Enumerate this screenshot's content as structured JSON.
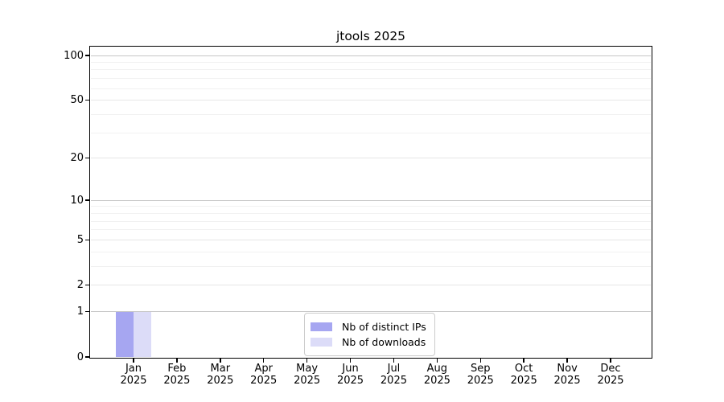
{
  "title": "jtools 2025",
  "legend": {
    "position": "lower center",
    "items": [
      {
        "label": "Nb of distinct IPs",
        "color": "#a6a6f1"
      },
      {
        "label": "Nb of downloads",
        "color": "#dcdcf8"
      }
    ]
  },
  "chart_data": {
    "type": "bar",
    "title": "jtools 2025",
    "categories": [
      "Jan 2025",
      "Feb 2025",
      "Mar 2025",
      "Apr 2025",
      "May 2025",
      "Jun 2025",
      "Jul 2025",
      "Aug 2025",
      "Sep 2025",
      "Oct 2025",
      "Nov 2025",
      "Dec 2025"
    ],
    "series": [
      {
        "name": "Nb of distinct IPs",
        "color": "#a6a6f1",
        "values": [
          1,
          0,
          0,
          0,
          0,
          0,
          0,
          0,
          0,
          0,
          0,
          0
        ]
      },
      {
        "name": "Nb of downloads",
        "color": "#dcdcf8",
        "values": [
          1,
          0,
          0,
          0,
          0,
          0,
          0,
          0,
          0,
          0,
          0,
          0
        ]
      }
    ],
    "xlabel": "",
    "ylabel": "",
    "y_axis": {
      "scale": "log1p",
      "min": 0,
      "max": 113.3,
      "tick_values": [
        100,
        50,
        20,
        10,
        5,
        2,
        1,
        0
      ],
      "tick_labels": [
        "100",
        "50",
        "20",
        "10",
        "5",
        "2",
        "1",
        "0"
      ],
      "minor_tick_values": [
        90,
        80,
        70,
        60,
        40,
        30,
        9,
        8,
        7,
        6,
        4,
        3
      ]
    },
    "grid": true,
    "legend_position": "lower center"
  },
  "colors": {
    "background": "#ffffff",
    "spine": "#000000",
    "grid_decade": "#c6c6c6",
    "grid_labeled": "#e6e6e6",
    "grid_minor": "#f1f1f1",
    "bar_distinct_ips": "#a6a6f1",
    "bar_downloads": "#dcdcf8"
  }
}
